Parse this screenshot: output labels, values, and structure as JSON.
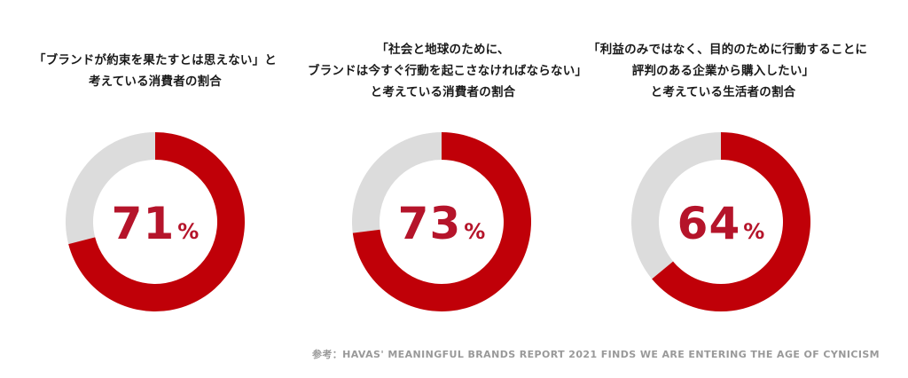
{
  "colors": {
    "accent": "#c00008",
    "remainder": "#dcdcdc",
    "label": "#b5142a",
    "source": "#999999"
  },
  "chart_data": [
    {
      "type": "pie",
      "style": "donut",
      "title_lines": [
        "「ブランドが約束を果たすとは思えない」と",
        "考えている消費者の割合"
      ],
      "value": 71,
      "unit": "%",
      "label": "71"
    },
    {
      "type": "pie",
      "style": "donut",
      "title_lines": [
        "「社会と地球のために、",
        "ブランドは今すぐ行動を起こさなければならない」",
        "と考えている消費者の割合"
      ],
      "value": 73,
      "unit": "%",
      "label": "73"
    },
    {
      "type": "pie",
      "style": "donut",
      "title_lines": [
        "「利益のみではなく、目的のために行動することに",
        "評判のある企業から購入したい」",
        "と考えている生活者の割合"
      ],
      "value": 64,
      "unit": "%",
      "label": "64"
    }
  ],
  "source": "参考：HAVAS' MEANINGFUL BRANDS REPORT 2021 FINDS WE ARE ENTERING THE AGE OF CYNICISM"
}
